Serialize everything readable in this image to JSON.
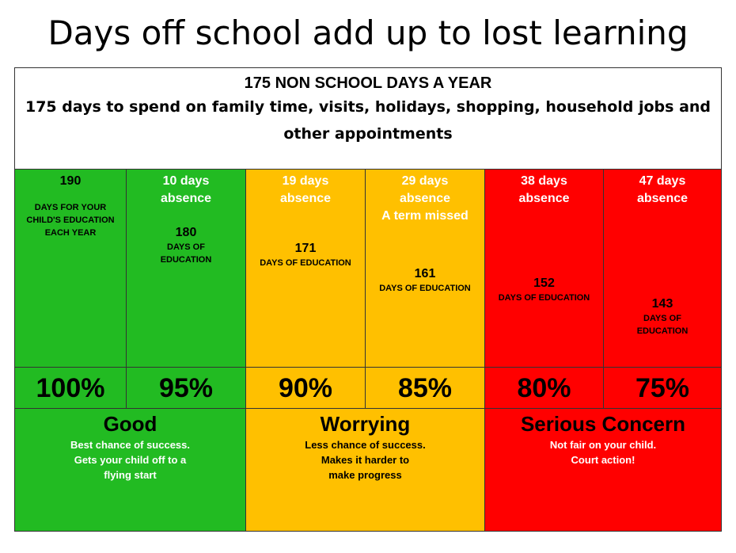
{
  "title": "Days off school add up to lost learning",
  "header": {
    "line1": "175 NON SCHOOL DAYS A YEAR",
    "line2": "175 days to spend on family time, visits, holidays, shopping, household jobs and other appointments"
  },
  "columns": [
    {
      "top": "190",
      "top2": "",
      "extra": "",
      "days": "",
      "label": "DAYS FOR YOUR CHILD'S EDUCATION  EACH YEAR",
      "percent": "100%"
    },
    {
      "top": "10 days",
      "top2": "absence",
      "extra": "",
      "days": "180",
      "label": "DAYS OF EDUCATION",
      "percent": "95%"
    },
    {
      "top": "19 days",
      "top2": "absence",
      "extra": "",
      "days": "171",
      "label": "DAYS OF EDUCATION",
      "percent": "90%"
    },
    {
      "top": "29 days",
      "top2": "absence",
      "extra": "A term missed",
      "days": "161",
      "label": "DAYS OF EDUCATION",
      "percent": "85%"
    },
    {
      "top": "38 days",
      "top2": "absence",
      "extra": "",
      "days": "152",
      "label": "DAYS OF EDUCATION",
      "percent": "80%"
    },
    {
      "top": "47 days",
      "top2": "absence",
      "extra": "",
      "days": "143",
      "label": "DAYS OF EDUCATION",
      "percent": "75%"
    }
  ],
  "bands": [
    {
      "title": "Good",
      "lines": [
        "Best chance of success.",
        "Gets your child off to a",
        "flying start"
      ]
    },
    {
      "title": "Worrying",
      "lines": [
        "Less chance of success.",
        "Makes it harder to",
        "make progress"
      ]
    },
    {
      "title": "Serious  Concern",
      "lines": [
        "Not fair on your child.",
        "Court action!"
      ]
    }
  ],
  "colors": {
    "green": "#22bb22",
    "amber": "#ffc000",
    "red": "#ff0000"
  }
}
